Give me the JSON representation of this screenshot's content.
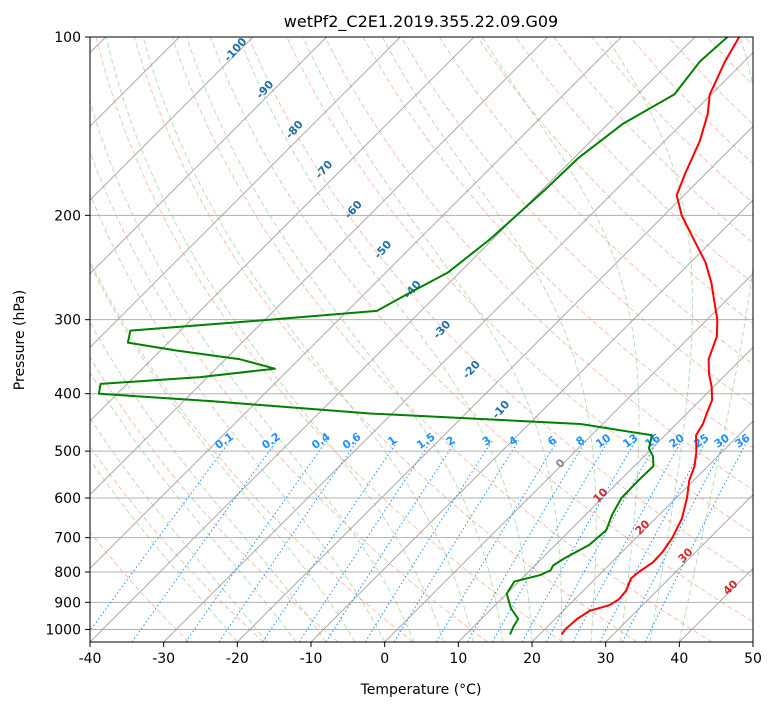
{
  "chart_data": {
    "type": "line",
    "title": "wetPf2_C2E1.2019.355.22.09.G09",
    "xlabel": "Temperature (°C)",
    "ylabel": "Pressure (hPa)",
    "xlim": [
      -40,
      50
    ],
    "ylim": [
      1050,
      100
    ],
    "y_scale": "log",
    "skew": true,
    "grid": true,
    "x_ticks": [
      -40,
      -30,
      -20,
      -10,
      0,
      10,
      20,
      30,
      40,
      50
    ],
    "y_ticks": [
      100,
      200,
      300,
      400,
      500,
      600,
      700,
      800,
      900,
      1000
    ],
    "series": [
      {
        "color": "#ff0000",
        "points": [
          [
            1020,
            23.0
          ],
          [
            1000,
            22.8
          ],
          [
            960,
            23.0
          ],
          [
            930,
            23.6
          ],
          [
            910,
            25.5
          ],
          [
            890,
            26.0
          ],
          [
            860,
            25.8
          ],
          [
            840,
            25.3
          ],
          [
            820,
            24.8
          ],
          [
            800,
            25.0
          ],
          [
            770,
            25.6
          ],
          [
            740,
            25.5
          ],
          [
            700,
            24.9
          ],
          [
            650,
            23.6
          ],
          [
            600,
            21.5
          ],
          [
            560,
            19.4
          ],
          [
            530,
            18.2
          ],
          [
            500,
            16.4
          ],
          [
            470,
            14.2
          ],
          [
            450,
            13.6
          ],
          [
            430,
            12.6
          ],
          [
            410,
            11.6
          ],
          [
            390,
            9.8
          ],
          [
            370,
            7.6
          ],
          [
            350,
            5.6
          ],
          [
            320,
            3.6
          ],
          [
            300,
            1.4
          ],
          [
            280,
            -1.4
          ],
          [
            260,
            -4.4
          ],
          [
            240,
            -8.0
          ],
          [
            220,
            -12.6
          ],
          [
            200,
            -17.6
          ],
          [
            185,
            -21.0
          ],
          [
            170,
            -22.8
          ],
          [
            150,
            -25.2
          ],
          [
            135,
            -27.8
          ],
          [
            125,
            -30.2
          ],
          [
            110,
            -32.6
          ],
          [
            100,
            -34.0
          ]
        ]
      },
      {
        "color": "#008000",
        "points": [
          [
            1020,
            16.0
          ],
          [
            990,
            15.4
          ],
          [
            960,
            15.0
          ],
          [
            920,
            12.5
          ],
          [
            870,
            10.0
          ],
          [
            830,
            9.4
          ],
          [
            810,
            12.0
          ],
          [
            795,
            12.8
          ],
          [
            780,
            12.5
          ],
          [
            760,
            13.0
          ],
          [
            720,
            14.6
          ],
          [
            680,
            14.9
          ],
          [
            640,
            13.6
          ],
          [
            600,
            12.6
          ],
          [
            560,
            12.5
          ],
          [
            530,
            12.6
          ],
          [
            510,
            11.2
          ],
          [
            495,
            9.6
          ],
          [
            470,
            8.2
          ],
          [
            450,
            -3.0
          ],
          [
            432,
            -33.0
          ],
          [
            412,
            -56.0
          ],
          [
            400,
            -72.5
          ],
          [
            385,
            -73.6
          ],
          [
            375,
            -61.0
          ],
          [
            363,
            -52.0
          ],
          [
            350,
            -58.0
          ],
          [
            338,
            -68.0
          ],
          [
            328,
            -75.5
          ],
          [
            313,
            -76.8
          ],
          [
            302,
            -62.0
          ],
          [
            290,
            -46.0
          ],
          [
            270,
            -44.0
          ],
          [
            250,
            -41.6
          ],
          [
            220,
            -40.4
          ],
          [
            200,
            -40.0
          ],
          [
            180,
            -39.6
          ],
          [
            160,
            -39.4
          ],
          [
            140,
            -38.0
          ],
          [
            125,
            -35.0
          ],
          [
            110,
            -36.0
          ],
          [
            100,
            -35.6
          ]
        ]
      }
    ],
    "isotherm_labels": [
      "0",
      "10",
      "20",
      "30",
      "40"
    ],
    "dry_adiabat_labels": [
      "-100",
      "-90",
      "-80",
      "-70",
      "-60",
      "-50",
      "-40",
      "-30",
      "-20",
      "-10"
    ],
    "mixing_ratio_labels": [
      "0.1",
      "0.2",
      "0.4",
      "0.6",
      "1",
      "1.5",
      "2",
      "3",
      "4",
      "6",
      "8",
      "10",
      "13",
      "16",
      "20",
      "25",
      "30",
      "36"
    ],
    "colors": {
      "isotherm": "#a0a0a0",
      "dry_adiabat": "#ff8c69",
      "moist_adiabat": "#6fbf6f",
      "mixing_ratio": "#1e90ff",
      "dry_adiabat_label": "#1f6fa8",
      "isotherm_label": "#d62728"
    }
  }
}
